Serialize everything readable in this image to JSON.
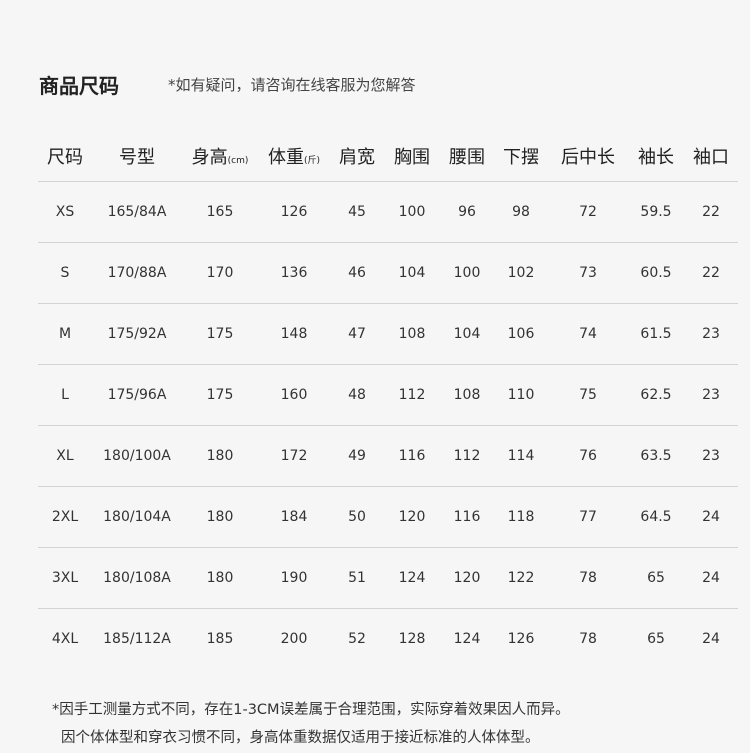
{
  "title": "商品尺码",
  "note": "*如有疑问，请咨询在线客服为您解答",
  "columns": [
    {
      "label": "尺码",
      "unit": ""
    },
    {
      "label": "号型",
      "unit": ""
    },
    {
      "label": "身高",
      "unit": "(cm)"
    },
    {
      "label": "体重",
      "unit": "(斤)"
    },
    {
      "label": "肩宽",
      "unit": ""
    },
    {
      "label": "胸围",
      "unit": ""
    },
    {
      "label": "腰围",
      "unit": ""
    },
    {
      "label": "下摆",
      "unit": ""
    },
    {
      "label": "后中长",
      "unit": ""
    },
    {
      "label": "袖长",
      "unit": ""
    },
    {
      "label": "袖口",
      "unit": ""
    }
  ],
  "rows": [
    [
      "XS",
      "165/84A",
      "165",
      "126",
      "45",
      "100",
      "96",
      "98",
      "72",
      "59.5",
      "22"
    ],
    [
      "S",
      "170/88A",
      "170",
      "136",
      "46",
      "104",
      "100",
      "102",
      "73",
      "60.5",
      "22"
    ],
    [
      "M",
      "175/92A",
      "175",
      "148",
      "47",
      "108",
      "104",
      "106",
      "74",
      "61.5",
      "23"
    ],
    [
      "L",
      "175/96A",
      "175",
      "160",
      "48",
      "112",
      "108",
      "110",
      "75",
      "62.5",
      "23"
    ],
    [
      "XL",
      "180/100A",
      "180",
      "172",
      "49",
      "116",
      "112",
      "114",
      "76",
      "63.5",
      "23"
    ],
    [
      "2XL",
      "180/104A",
      "180",
      "184",
      "50",
      "120",
      "116",
      "118",
      "77",
      "64.5",
      "24"
    ],
    [
      "3XL",
      "180/108A",
      "180",
      "190",
      "51",
      "124",
      "120",
      "122",
      "78",
      "65",
      "24"
    ],
    [
      "4XL",
      "185/112A",
      "185",
      "200",
      "52",
      "128",
      "124",
      "126",
      "78",
      "65",
      "24"
    ]
  ],
  "footnotes": [
    "*因手工测量方式不同，存在1-3CM误差属于合理范围，实际穿着效果因人而异。",
    "因个体体型和穿衣习惯不同，身高体重数据仅适用于接近标准的人体体型。"
  ]
}
